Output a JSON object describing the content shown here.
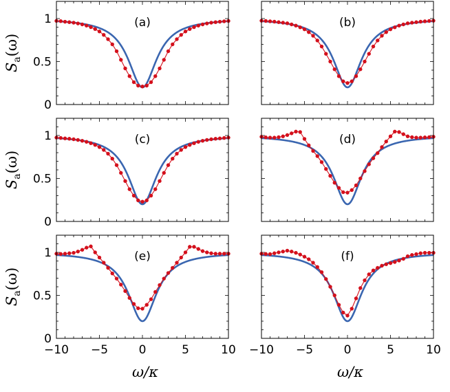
{
  "chart_data": {
    "type": "line",
    "layout": "3x2 grid of panels sharing x-axis",
    "xlabel": "ω/κ",
    "ylabel": "S_a(ω)",
    "ylabel_main": "S",
    "ylabel_sub": "a",
    "ylabel_arg": "(ω)",
    "xlim": [
      -10,
      10
    ],
    "ylim": [
      0,
      1.2
    ],
    "x_ticks": [
      -10,
      -5,
      0,
      5,
      10
    ],
    "x_tick_labels": [
      "−10",
      "−5",
      "0",
      "5",
      "10"
    ],
    "y_ticks": [
      0,
      0.5,
      1
    ],
    "y_tick_labels": [
      "0",
      "0.5",
      "1"
    ],
    "theory_curve": {
      "type": "lorentzian dip",
      "baseline": 1.0,
      "minimum": 0.2,
      "center": 0,
      "half_width": 2.0,
      "color": "#3a66b0"
    },
    "sim_color": "#d4101c",
    "panels": [
      {
        "label": "(a)",
        "sim_points": [
          [
            -10,
            0.973
          ],
          [
            -9.5,
            0.97
          ],
          [
            -9,
            0.963
          ],
          [
            -8.5,
            0.958
          ],
          [
            -8,
            0.952
          ],
          [
            -7.5,
            0.943
          ],
          [
            -7,
            0.932
          ],
          [
            -6.5,
            0.918
          ],
          [
            -6,
            0.9
          ],
          [
            -5.5,
            0.878
          ],
          [
            -5,
            0.85
          ],
          [
            -4.5,
            0.81
          ],
          [
            -4,
            0.76
          ],
          [
            -3.5,
            0.7
          ],
          [
            -3,
            0.62
          ],
          [
            -2.5,
            0.52
          ],
          [
            -2,
            0.42
          ],
          [
            -1.5,
            0.33
          ],
          [
            -1,
            0.26
          ],
          [
            -0.5,
            0.22
          ],
          [
            0,
            0.21
          ],
          [
            0.5,
            0.22
          ],
          [
            1,
            0.26
          ],
          [
            1.5,
            0.33
          ],
          [
            2,
            0.42
          ],
          [
            2.5,
            0.52
          ],
          [
            3,
            0.62
          ],
          [
            3.5,
            0.7
          ],
          [
            4,
            0.76
          ],
          [
            4.5,
            0.81
          ],
          [
            5,
            0.85
          ],
          [
            5.5,
            0.878
          ],
          [
            6,
            0.9
          ],
          [
            6.5,
            0.918
          ],
          [
            7,
            0.932
          ],
          [
            7.5,
            0.943
          ],
          [
            8,
            0.952
          ],
          [
            8.5,
            0.958
          ],
          [
            9,
            0.963
          ],
          [
            9.5,
            0.968
          ],
          [
            10,
            0.972
          ]
        ]
      },
      {
        "label": "(b)",
        "sim_points": [
          [
            -10,
            0.975
          ],
          [
            -9.5,
            0.972
          ],
          [
            -9,
            0.968
          ],
          [
            -8.5,
            0.964
          ],
          [
            -8,
            0.958
          ],
          [
            -7.5,
            0.952
          ],
          [
            -7,
            0.945
          ],
          [
            -6.5,
            0.932
          ],
          [
            -6,
            0.918
          ],
          [
            -5.5,
            0.898
          ],
          [
            -5,
            0.875
          ],
          [
            -4.5,
            0.842
          ],
          [
            -4,
            0.8
          ],
          [
            -3.5,
            0.745
          ],
          [
            -3,
            0.675
          ],
          [
            -2.5,
            0.59
          ],
          [
            -2,
            0.5
          ],
          [
            -1.5,
            0.41
          ],
          [
            -1,
            0.33
          ],
          [
            -0.5,
            0.27
          ],
          [
            0,
            0.25
          ],
          [
            0.5,
            0.27
          ],
          [
            1,
            0.33
          ],
          [
            1.5,
            0.41
          ],
          [
            2,
            0.5
          ],
          [
            2.5,
            0.59
          ],
          [
            3,
            0.675
          ],
          [
            3.5,
            0.745
          ],
          [
            4,
            0.8
          ],
          [
            4.5,
            0.842
          ],
          [
            5,
            0.875
          ],
          [
            5.5,
            0.898
          ],
          [
            6,
            0.918
          ],
          [
            6.5,
            0.932
          ],
          [
            7,
            0.945
          ],
          [
            7.5,
            0.952
          ],
          [
            8,
            0.958
          ],
          [
            8.5,
            0.964
          ],
          [
            9,
            0.968
          ],
          [
            9.5,
            0.972
          ],
          [
            10,
            0.975
          ]
        ]
      },
      {
        "label": "(c)",
        "sim_points": [
          [
            -10,
            0.975
          ],
          [
            -9.5,
            0.971
          ],
          [
            -9,
            0.966
          ],
          [
            -8.5,
            0.962
          ],
          [
            -8,
            0.956
          ],
          [
            -7.5,
            0.948
          ],
          [
            -7,
            0.938
          ],
          [
            -6.5,
            0.926
          ],
          [
            -6,
            0.91
          ],
          [
            -5.5,
            0.89
          ],
          [
            -5,
            0.865
          ],
          [
            -4.5,
            0.832
          ],
          [
            -4,
            0.788
          ],
          [
            -3.5,
            0.73
          ],
          [
            -3,
            0.655
          ],
          [
            -2.5,
            0.565
          ],
          [
            -2,
            0.47
          ],
          [
            -1.5,
            0.375
          ],
          [
            -1,
            0.3
          ],
          [
            -0.5,
            0.245
          ],
          [
            0,
            0.23
          ],
          [
            0.5,
            0.245
          ],
          [
            1,
            0.3
          ],
          [
            1.5,
            0.375
          ],
          [
            2,
            0.47
          ],
          [
            2.5,
            0.565
          ],
          [
            3,
            0.655
          ],
          [
            3.5,
            0.73
          ],
          [
            4,
            0.788
          ],
          [
            4.5,
            0.832
          ],
          [
            5,
            0.865
          ],
          [
            5.5,
            0.89
          ],
          [
            6,
            0.91
          ],
          [
            6.5,
            0.926
          ],
          [
            7,
            0.938
          ],
          [
            7.5,
            0.948
          ],
          [
            8,
            0.956
          ],
          [
            8.5,
            0.962
          ],
          [
            9,
            0.966
          ],
          [
            9.5,
            0.971
          ],
          [
            10,
            0.975
          ]
        ]
      },
      {
        "label": "(d)",
        "sim_points": [
          [
            -10,
            0.985
          ],
          [
            -9.5,
            0.978
          ],
          [
            -9,
            0.975
          ],
          [
            -8.5,
            0.975
          ],
          [
            -8,
            0.98
          ],
          [
            -7.5,
            0.99
          ],
          [
            -7,
            1.005
          ],
          [
            -6.5,
            1.025
          ],
          [
            -6,
            1.045
          ],
          [
            -5.5,
            1.04
          ],
          [
            -5,
            0.96
          ],
          [
            -4.5,
            0.885
          ],
          [
            -4,
            0.82
          ],
          [
            -3.5,
            0.76
          ],
          [
            -3,
            0.69
          ],
          [
            -2.5,
            0.61
          ],
          [
            -2,
            0.53
          ],
          [
            -1.5,
            0.45
          ],
          [
            -1,
            0.39
          ],
          [
            -0.5,
            0.34
          ],
          [
            0,
            0.335
          ],
          [
            0.5,
            0.365
          ],
          [
            1,
            0.42
          ],
          [
            1.5,
            0.5
          ],
          [
            2,
            0.585
          ],
          [
            2.5,
            0.665
          ],
          [
            3,
            0.735
          ],
          [
            3.5,
            0.795
          ],
          [
            4,
            0.865
          ],
          [
            4.5,
            0.93
          ],
          [
            5,
            0.99
          ],
          [
            5.5,
            1.045
          ],
          [
            6,
            1.04
          ],
          [
            6.5,
            1.015
          ],
          [
            7,
            0.99
          ],
          [
            7.5,
            0.98
          ],
          [
            8,
            0.975
          ],
          [
            8.5,
            0.975
          ],
          [
            9,
            0.978
          ],
          [
            9.5,
            0.98
          ],
          [
            10,
            0.985
          ]
        ]
      },
      {
        "label": "(e)",
        "sim_points": [
          [
            -10,
            0.985
          ],
          [
            -9.5,
            0.982
          ],
          [
            -9,
            0.985
          ],
          [
            -8.5,
            0.99
          ],
          [
            -8,
            0.995
          ],
          [
            -7.5,
            1.01
          ],
          [
            -7,
            1.03
          ],
          [
            -6.5,
            1.055
          ],
          [
            -6,
            1.07
          ],
          [
            -5.5,
            1.0
          ],
          [
            -5,
            0.94
          ],
          [
            -4.5,
            0.88
          ],
          [
            -4,
            0.82
          ],
          [
            -3.5,
            0.755
          ],
          [
            -3,
            0.695
          ],
          [
            -2.5,
            0.625
          ],
          [
            -2,
            0.55
          ],
          [
            -1.5,
            0.47
          ],
          [
            -1,
            0.4
          ],
          [
            -0.5,
            0.35
          ],
          [
            0,
            0.345
          ],
          [
            0.5,
            0.39
          ],
          [
            1,
            0.455
          ],
          [
            1.5,
            0.54
          ],
          [
            2,
            0.62
          ],
          [
            2.5,
            0.695
          ],
          [
            3,
            0.76
          ],
          [
            3.5,
            0.82
          ],
          [
            4,
            0.88
          ],
          [
            4.5,
            0.94
          ],
          [
            5,
            1.0
          ],
          [
            5.5,
            1.065
          ],
          [
            6,
            1.065
          ],
          [
            6.5,
            1.04
          ],
          [
            7,
            1.015
          ],
          [
            7.5,
            1.0
          ],
          [
            8,
            0.99
          ],
          [
            8.5,
            0.985
          ],
          [
            9,
            0.985
          ],
          [
            9.5,
            0.985
          ],
          [
            10,
            0.985
          ]
        ]
      },
      {
        "label": "(f)",
        "sim_points": [
          [
            -10,
            0.985
          ],
          [
            -9.5,
            0.982
          ],
          [
            -9,
            0.98
          ],
          [
            -8.5,
            0.99
          ],
          [
            -8,
            1.0
          ],
          [
            -7.5,
            1.01
          ],
          [
            -7,
            1.02
          ],
          [
            -6.5,
            1.01
          ],
          [
            -6,
            0.995
          ],
          [
            -5.5,
            0.975
          ],
          [
            -5,
            0.95
          ],
          [
            -4.5,
            0.92
          ],
          [
            -4,
            0.88
          ],
          [
            -3.5,
            0.83
          ],
          [
            -3,
            0.77
          ],
          [
            -2.5,
            0.69
          ],
          [
            -2,
            0.6
          ],
          [
            -1.5,
            0.5
          ],
          [
            -1,
            0.39
          ],
          [
            -0.5,
            0.3
          ],
          [
            0,
            0.265
          ],
          [
            0.5,
            0.345
          ],
          [
            1,
            0.465
          ],
          [
            1.5,
            0.585
          ],
          [
            2,
            0.675
          ],
          [
            2.5,
            0.745
          ],
          [
            3,
            0.79
          ],
          [
            3.5,
            0.82
          ],
          [
            4,
            0.845
          ],
          [
            4.5,
            0.862
          ],
          [
            5,
            0.875
          ],
          [
            5.5,
            0.888
          ],
          [
            6,
            0.905
          ],
          [
            6.5,
            0.925
          ],
          [
            7,
            0.955
          ],
          [
            7.5,
            0.97
          ],
          [
            8,
            0.98
          ],
          [
            8.5,
            0.99
          ],
          [
            9,
            0.995
          ],
          [
            9.5,
            0.995
          ],
          [
            10,
            0.995
          ]
        ]
      }
    ]
  }
}
